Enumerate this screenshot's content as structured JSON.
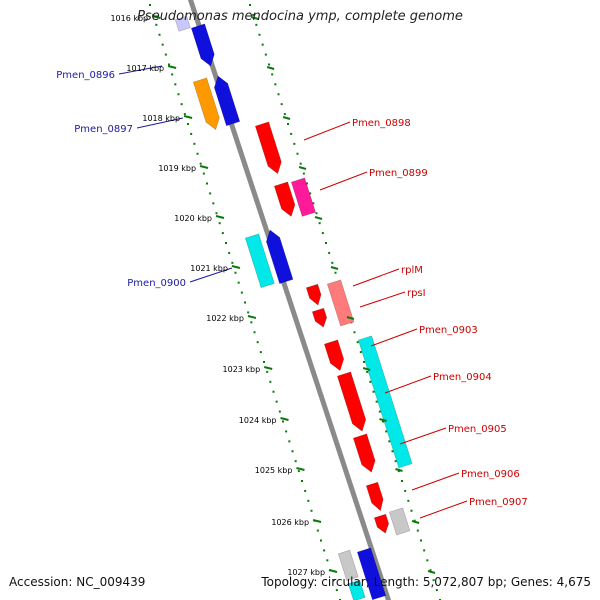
{
  "title": "Pseudomonas mendocina ymp, complete genome",
  "accession": {
    "label": "Accession:",
    "value": "NC_009439"
  },
  "topology": {
    "label": "Topology:",
    "value": "circular"
  },
  "length": {
    "label": "Length:",
    "value": "5,072,807 bp"
  },
  "genes": {
    "label": "Genes:",
    "value": "4,675"
  },
  "colors": {
    "backbone": "#8a8a8a",
    "ticks": "#0a7a0a",
    "label_left": "#1a1aa0",
    "label_right": "#cc0000"
  },
  "tick_labels": [
    "1016 kbp",
    "1017 kbp",
    "1018 kbp",
    "1019 kbp",
    "1020 kbp",
    "1021 kbp",
    "1022 kbp",
    "1023 kbp",
    "1024 kbp",
    "1025 kbp",
    "1026 kbp",
    "1027 kbp"
  ],
  "gene_labels_left": [
    "Pmen_0896",
    "Pmen_0897",
    "Pmen_0900"
  ],
  "gene_labels_right": [
    "Pmen_0898",
    "Pmen_0899",
    "rplM",
    "rpsI",
    "Pmen_0903",
    "Pmen_0904",
    "Pmen_0905",
    "Pmen_0906",
    "Pmen_0907"
  ]
}
